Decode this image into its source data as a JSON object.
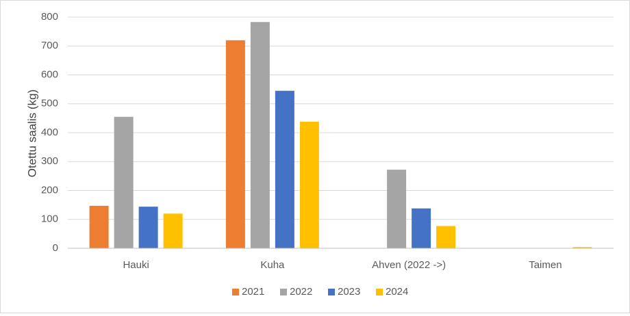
{
  "chart_data": {
    "type": "bar",
    "ylabel": "Otettu saalis (kg)",
    "ylim": [
      0,
      800
    ],
    "yticks": [
      0,
      100,
      200,
      300,
      400,
      500,
      600,
      700,
      800
    ],
    "grid": true,
    "legend_position": "bottom",
    "categories": [
      "Hauki",
      "Kuha",
      "Ahven (2022 ->)",
      "Taimen"
    ],
    "series": [
      {
        "name": "2021",
        "color": "#ED7D31",
        "values": [
          147,
          720,
          null,
          null
        ]
      },
      {
        "name": "2022",
        "color": "#A5A5A5",
        "values": [
          455,
          783,
          272,
          null
        ]
      },
      {
        "name": "2023",
        "color": "#4472C4",
        "values": [
          144,
          545,
          138,
          null
        ]
      },
      {
        "name": "2024",
        "color": "#FFC000",
        "values": [
          120,
          438,
          77,
          4
        ]
      }
    ]
  }
}
